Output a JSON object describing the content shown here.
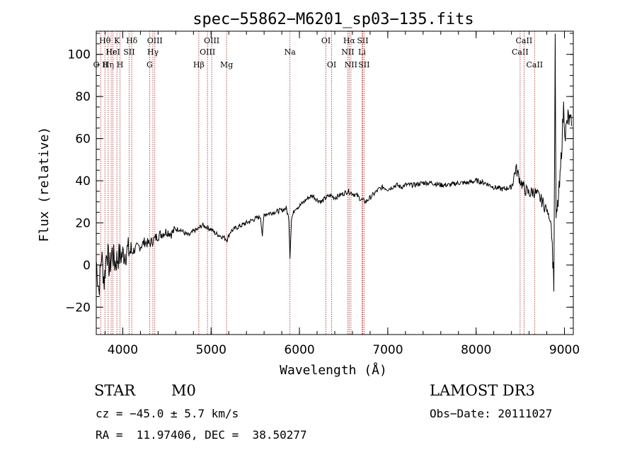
{
  "chart_data": {
    "type": "line",
    "title": "spec−55862−M6201_sp03−135.fits",
    "xlabel": "Wavelength (Å)",
    "ylabel": "Flux (relative)",
    "xlim": [
      3700,
      9100
    ],
    "ylim": [
      -33,
      111
    ],
    "x_ticks": [
      4000,
      5000,
      6000,
      7000,
      8000,
      9000
    ],
    "y_ticks": [
      -20,
      0,
      20,
      40,
      60,
      80,
      100
    ],
    "y_tick_labels": [
      "−20",
      "0",
      "20",
      "40",
      "60",
      "80",
      "100"
    ],
    "series": [
      {
        "name": "flux",
        "points": [
          [
            3700,
            2
          ],
          [
            3730,
            -12
          ],
          [
            3760,
            5
          ],
          [
            3790,
            -8
          ],
          [
            3820,
            8
          ],
          [
            3850,
            -2
          ],
          [
            3880,
            6
          ],
          [
            3910,
            1
          ],
          [
            3950,
            4
          ],
          [
            4000,
            5
          ],
          [
            4050,
            7
          ],
          [
            4100,
            6
          ],
          [
            4150,
            8
          ],
          [
            4200,
            9
          ],
          [
            4250,
            11
          ],
          [
            4300,
            10
          ],
          [
            4350,
            12
          ],
          [
            4400,
            14
          ],
          [
            4450,
            15
          ],
          [
            4500,
            16
          ],
          [
            4550,
            15
          ],
          [
            4600,
            17
          ],
          [
            4650,
            17
          ],
          [
            4700,
            15
          ],
          [
            4750,
            14
          ],
          [
            4800,
            16
          ],
          [
            4850,
            17
          ],
          [
            4900,
            19
          ],
          [
            4950,
            18
          ],
          [
            5000,
            17
          ],
          [
            5050,
            15
          ],
          [
            5100,
            14
          ],
          [
            5150,
            13
          ],
          [
            5180,
            12
          ],
          [
            5220,
            16
          ],
          [
            5300,
            18
          ],
          [
            5400,
            20
          ],
          [
            5500,
            22
          ],
          [
            5560,
            23
          ],
          [
            5580,
            14
          ],
          [
            5600,
            24
          ],
          [
            5700,
            25
          ],
          [
            5800,
            26
          ],
          [
            5850,
            27
          ],
          [
            5880,
            22
          ],
          [
            5893,
            4
          ],
          [
            5910,
            22
          ],
          [
            5950,
            27
          ],
          [
            6000,
            28
          ],
          [
            6050,
            30
          ],
          [
            6100,
            32
          ],
          [
            6150,
            33
          ],
          [
            6200,
            31
          ],
          [
            6250,
            30
          ],
          [
            6300,
            32
          ],
          [
            6350,
            33
          ],
          [
            6400,
            32
          ],
          [
            6450,
            33
          ],
          [
            6500,
            34
          ],
          [
            6550,
            35
          ],
          [
            6600,
            34
          ],
          [
            6650,
            33
          ],
          [
            6700,
            31
          ],
          [
            6750,
            30
          ],
          [
            6800,
            32
          ],
          [
            6850,
            34
          ],
          [
            6900,
            36
          ],
          [
            6950,
            37
          ],
          [
            7000,
            36
          ],
          [
            7050,
            37
          ],
          [
            7100,
            38
          ],
          [
            7150,
            37
          ],
          [
            7200,
            38
          ],
          [
            7300,
            38
          ],
          [
            7400,
            39
          ],
          [
            7500,
            39
          ],
          [
            7600,
            38
          ],
          [
            7700,
            38
          ],
          [
            7800,
            39
          ],
          [
            7900,
            39
          ],
          [
            8000,
            40
          ],
          [
            8100,
            39
          ],
          [
            8200,
            37
          ],
          [
            8300,
            36
          ],
          [
            8400,
            37
          ],
          [
            8450,
            46
          ],
          [
            8500,
            40
          ],
          [
            8550,
            36
          ],
          [
            8600,
            34
          ],
          [
            8650,
            35
          ],
          [
            8700,
            33
          ],
          [
            8750,
            30
          ],
          [
            8800,
            26
          ],
          [
            8850,
            20
          ],
          [
            8880,
            -8
          ],
          [
            8895,
            105
          ],
          [
            8905,
            20
          ],
          [
            8950,
            40
          ],
          [
            8990,
            75
          ],
          [
            9010,
            62
          ],
          [
            9040,
            70
          ],
          [
            9080,
            66
          ]
        ]
      }
    ],
    "line_markers": [
      {
        "wl": 3750,
        "label": "O II",
        "row": 3
      },
      {
        "wl": 3798,
        "label": "Hθ",
        "row": 1
      },
      {
        "wl": 3835,
        "label": "Hη",
        "row": 3
      },
      {
        "wl": 3869,
        "label": "Hε",
        "row": 2
      },
      {
        "wl": 3889,
        "label": "HeI",
        "row": 2
      },
      {
        "wl": 3934,
        "label": "K",
        "row": 1
      },
      {
        "wl": 3969,
        "label": "H",
        "row": 3
      },
      {
        "wl": 4072,
        "label": "SII",
        "row": 2
      },
      {
        "wl": 4102,
        "label": "Hδ",
        "row": 1
      },
      {
        "wl": 4304,
        "label": "G",
        "row": 3
      },
      {
        "wl": 4341,
        "label": "Hγ",
        "row": 2
      },
      {
        "wl": 4363,
        "label": "OIII",
        "row": 1
      },
      {
        "wl": 4861,
        "label": "Hβ",
        "row": 3
      },
      {
        "wl": 4959,
        "label": "OIII",
        "row": 2
      },
      {
        "wl": 5007,
        "label": "OIII",
        "row": 1
      },
      {
        "wl": 5175,
        "label": "Mg",
        "row": 3
      },
      {
        "wl": 5893,
        "label": "Na",
        "row": 2
      },
      {
        "wl": 6300,
        "label": "OI",
        "row": 1
      },
      {
        "wl": 6364,
        "label": "OI",
        "row": 3
      },
      {
        "wl": 6548,
        "label": "NII",
        "row": 2
      },
      {
        "wl": 6563,
        "label": "Hα",
        "row": 1
      },
      {
        "wl": 6583,
        "label": "NII",
        "row": 3
      },
      {
        "wl": 6708,
        "label": "Li",
        "row": 2
      },
      {
        "wl": 6716,
        "label": "SII",
        "row": 1
      },
      {
        "wl": 6731,
        "label": "SII",
        "row": 3
      },
      {
        "wl": 8498,
        "label": "CaII",
        "row": 2
      },
      {
        "wl": 8542,
        "label": "CaII",
        "row": 1
      },
      {
        "wl": 8662,
        "label": "CaII",
        "row": 3
      }
    ]
  },
  "info": {
    "object_class": "STAR",
    "subclass": "M0",
    "survey": "LAMOST DR3",
    "cz": "cz = −45.0 ± 5.7 km/s",
    "obs_date": "Obs−Date: 20111027",
    "coords": "RA =  11.97406, DEC =  38.50277"
  },
  "colors": {
    "marker_line": "#b22222",
    "spectrum": "#000000"
  }
}
